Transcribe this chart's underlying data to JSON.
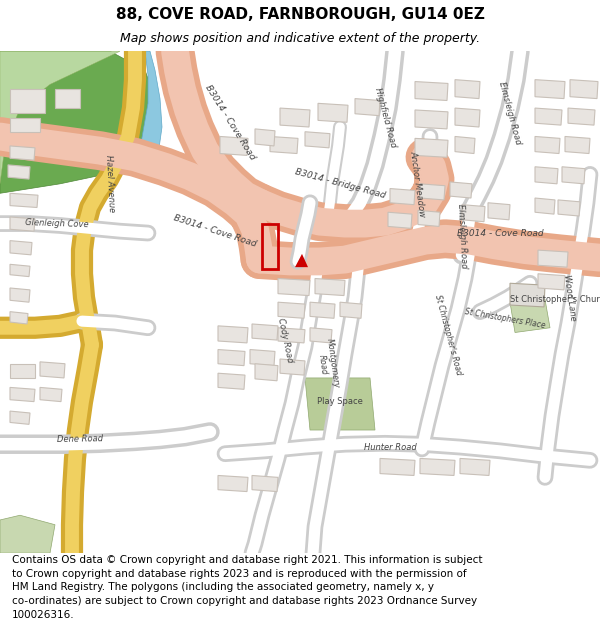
{
  "title": "88, COVE ROAD, FARNBOROUGH, GU14 0EZ",
  "subtitle": "Map shows position and indicative extent of the property.",
  "footer_line1": "Contains OS data © Crown copyright and database right 2021. This information is subject",
  "footer_line2": "to Crown copyright and database rights 2023 and is reproduced with the permission of",
  "footer_line3": "HM Land Registry. The polygons (including the associated geometry, namely x, y",
  "footer_line4": "co-ordinates) are subject to Crown copyright and database rights 2023 Ordnance Survey",
  "footer_line5": "100026316.",
  "map_bg": "#f5f3f0",
  "road_salmon_fill": "#f2c4b0",
  "road_salmon_edge": "#e8a888",
  "road_white_fill": "#ffffff",
  "road_white_edge": "#cccccc",
  "road_yellow_fill": "#f0d060",
  "road_yellow_edge": "#d4aa30",
  "building_fill": "#e8e4e0",
  "building_edge": "#c8c0b8",
  "green_dark": "#6aaa50",
  "green_light": "#b8d8a0",
  "green_pale": "#c8d8b0",
  "green_play": "#b8cc98",
  "blue_water": "#8cc8e0",
  "highlight_red": "#cc0000",
  "title_fontsize": 11,
  "subtitle_fontsize": 9,
  "footer_fontsize": 7.5,
  "label_color": "#444444",
  "label_size": 6.5
}
